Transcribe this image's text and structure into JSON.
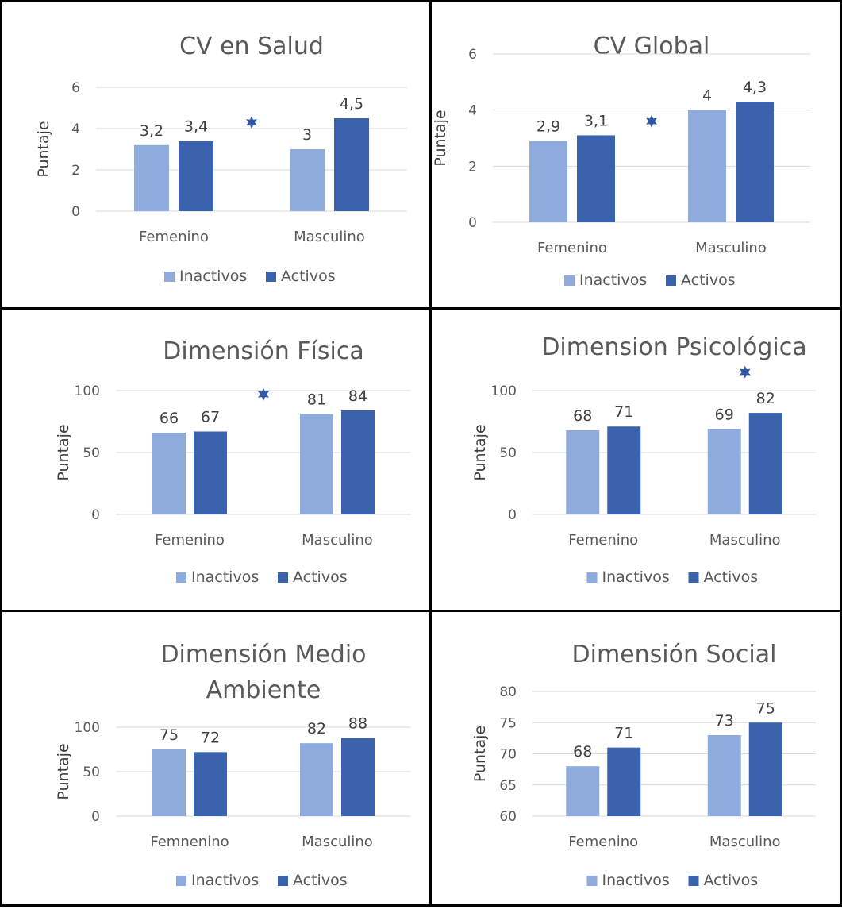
{
  "legend": {
    "inactive": "Inactivos",
    "active": "Activos"
  },
  "colors": {
    "inactive": "#8faadc",
    "active": "#3a62ad",
    "star": "#2f58a8",
    "grid": "#d9d9d9"
  },
  "chart_data": [
    {
      "type": "bar",
      "title": [
        "CV en Salud"
      ],
      "ylabel": "Puntaje",
      "categories": [
        "Femenino",
        "Masculino"
      ],
      "ylim": [
        0,
        6
      ],
      "yticks": [
        0,
        2,
        4,
        6
      ],
      "series": [
        {
          "name": "Inactivos",
          "values": [
            3.2,
            3.0
          ],
          "labels": [
            "3,2",
            "3"
          ]
        },
        {
          "name": "Activos",
          "values": [
            3.4,
            4.5
          ],
          "labels": [
            "3,4",
            "4,5"
          ]
        }
      ],
      "significance_marker": {
        "between_categories": true,
        "y": 4.3
      },
      "legend_position": "bottom",
      "grid": true
    },
    {
      "type": "bar",
      "title": [
        "CV Global"
      ],
      "ylabel": "Puntaje",
      "categories": [
        "Femenino",
        "Masculino"
      ],
      "ylim": [
        0,
        6
      ],
      "yticks": [
        0,
        2,
        4,
        6
      ],
      "series": [
        {
          "name": "Inactivos",
          "values": [
            2.9,
            4.0
          ],
          "labels": [
            "2,9",
            "4"
          ]
        },
        {
          "name": "Activos",
          "values": [
            3.1,
            4.3
          ],
          "labels": [
            "3,1",
            "4,3"
          ]
        }
      ],
      "significance_marker": {
        "between_categories": true,
        "y": 3.6
      },
      "legend_position": "bottom",
      "grid": true
    },
    {
      "type": "bar",
      "title": [
        "Dimensión Física"
      ],
      "ylabel": "Puntaje",
      "categories": [
        "Femenino",
        "Masculino"
      ],
      "ylim": [
        0,
        100
      ],
      "yticks": [
        0,
        50,
        100
      ],
      "series": [
        {
          "name": "Inactivos",
          "values": [
            66,
            81
          ],
          "labels": [
            "66",
            "81"
          ]
        },
        {
          "name": "Activos",
          "values": [
            67,
            84
          ],
          "labels": [
            "67",
            "84"
          ]
        }
      ],
      "significance_marker": {
        "between_categories": true,
        "y": 97
      },
      "legend_position": "bottom",
      "grid": true
    },
    {
      "type": "bar",
      "title": [
        "Dimension Psicológica"
      ],
      "ylabel": "Puntaje",
      "categories": [
        "Femenino",
        "Masculino"
      ],
      "ylim": [
        0,
        100
      ],
      "yticks": [
        0,
        50,
        100
      ],
      "series": [
        {
          "name": "Inactivos",
          "values": [
            68,
            69
          ],
          "labels": [
            "68",
            "69"
          ]
        },
        {
          "name": "Activos",
          "values": [
            71,
            82
          ],
          "labels": [
            "71",
            "82"
          ]
        }
      ],
      "significance_marker": {
        "category_index": 1,
        "y": 115
      },
      "legend_position": "bottom",
      "grid": true
    },
    {
      "type": "bar",
      "title": [
        "Dimensión Medio",
        "Ambiente"
      ],
      "ylabel": "Puntaje",
      "categories": [
        "Femnenino",
        "Masculino"
      ],
      "ylim": [
        0,
        100
      ],
      "yticks": [
        0,
        50,
        100
      ],
      "series": [
        {
          "name": "Inactivos",
          "values": [
            75,
            82
          ],
          "labels": [
            "75",
            "82"
          ]
        },
        {
          "name": "Activos",
          "values": [
            72,
            88
          ],
          "labels": [
            "72",
            "88"
          ]
        }
      ],
      "legend_position": "bottom",
      "grid": true
    },
    {
      "type": "bar",
      "title": [
        "Dimensión Social"
      ],
      "ylabel": "Puntaje",
      "categories": [
        "Femenino",
        "Masculino"
      ],
      "ylim": [
        60,
        80
      ],
      "yticks": [
        60,
        65,
        70,
        75,
        80
      ],
      "series": [
        {
          "name": "Inactivos",
          "values": [
            68,
            73
          ],
          "labels": [
            "68",
            "73"
          ]
        },
        {
          "name": "Activos",
          "values": [
            71,
            75
          ],
          "labels": [
            "71",
            "75"
          ]
        }
      ],
      "legend_position": "bottom",
      "grid": true
    }
  ]
}
